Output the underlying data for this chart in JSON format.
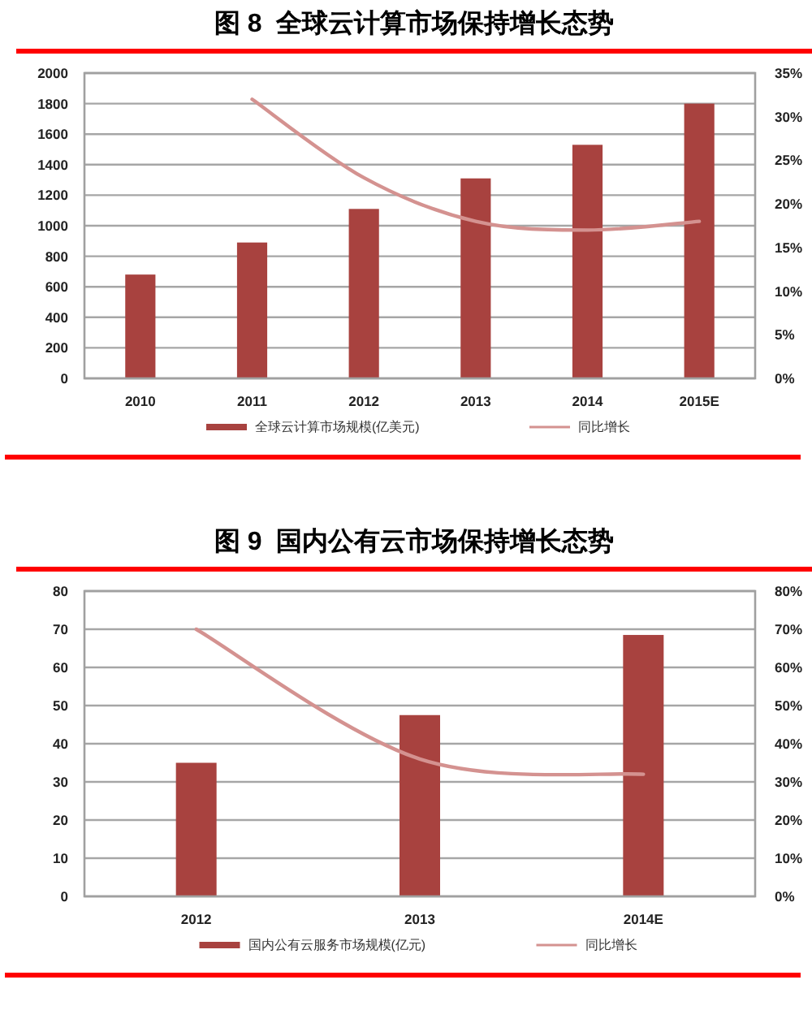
{
  "chart_data": [
    {
      "type": "bar",
      "title": "图 8  全球云计算市场保持增长态势",
      "categories": [
        "2010",
        "2011",
        "2012",
        "2013",
        "2014",
        "2015E"
      ],
      "series": [
        {
          "name": "全球云计算市场规模(亿美元)",
          "color": "#a8423f",
          "values": [
            680,
            890,
            1110,
            1310,
            1530,
            1800
          ]
        },
        {
          "name": "同比增长",
          "type": "line",
          "axis": "y2",
          "color": "#d49290",
          "values": [
            null,
            32,
            23,
            18,
            17,
            18
          ]
        }
      ],
      "ylim": [
        0,
        2000
      ],
      "yticks": [
        0,
        200,
        400,
        600,
        800,
        1000,
        1200,
        1400,
        1600,
        1800,
        2000
      ],
      "y2lim": [
        0,
        35
      ],
      "y2ticks": [
        {
          "value": 0,
          "label": "0%"
        },
        {
          "value": 5,
          "label": "5%"
        },
        {
          "value": 10,
          "label": "10%"
        },
        {
          "value": 15,
          "label": "15%"
        },
        {
          "value": 20,
          "label": "20%"
        },
        {
          "value": 25,
          "label": "25%"
        },
        {
          "value": 30,
          "label": "30%"
        },
        {
          "value": 35,
          "label": "35%"
        }
      ],
      "grid": "y",
      "legend": "bottom"
    },
    {
      "type": "bar",
      "title": "图 9  国内公有云市场保持增长态势",
      "categories": [
        "2012",
        "2013",
        "2014E"
      ],
      "series": [
        {
          "name": "国内公有云服务市场规模(亿元)",
          "color": "#a8423f",
          "values": [
            35,
            47.5,
            68.5
          ]
        },
        {
          "name": "同比增长",
          "type": "line",
          "axis": "y2",
          "color": "#d49290",
          "values": [
            70,
            36,
            32
          ]
        }
      ],
      "ylim": [
        0,
        80
      ],
      "yticks": [
        0,
        10,
        20,
        30,
        40,
        50,
        60,
        70,
        80
      ],
      "y2lim": [
        0,
        80
      ],
      "y2ticks": [
        {
          "value": 0,
          "label": "0%"
        },
        {
          "value": 10,
          "label": "10%"
        },
        {
          "value": 20,
          "label": "20%"
        },
        {
          "value": 30,
          "label": "30%"
        },
        {
          "value": 40,
          "label": "40%"
        },
        {
          "value": 50,
          "label": "50%"
        },
        {
          "value": 60,
          "label": "60%"
        },
        {
          "value": 70,
          "label": "70%"
        },
        {
          "value": 80,
          "label": "80%"
        }
      ],
      "grid": "y",
      "legend": "bottom"
    }
  ]
}
